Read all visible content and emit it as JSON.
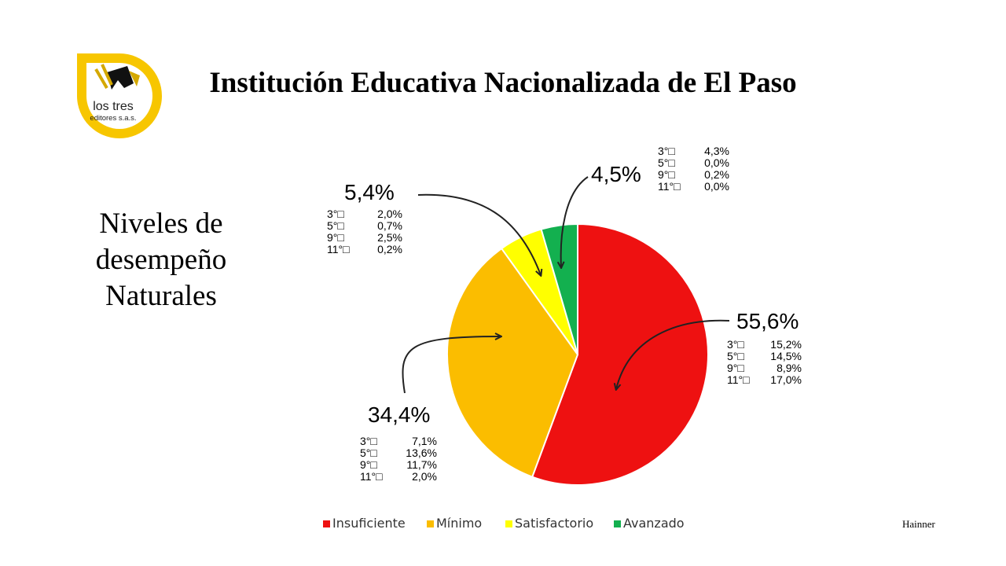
{
  "slide": {
    "title": "Institución Educativa Nacionalizada de El Paso",
    "subtitle": "Niveles de desempeño Naturales",
    "author": "Hainner",
    "logo": {
      "line1": "los tres",
      "line2": "editores s.a.s."
    }
  },
  "chart_data": {
    "type": "pie",
    "series": [
      {
        "name": "Insuficiente",
        "value": 55.6,
        "label": "55,6%",
        "color": "#ee1111",
        "details": [
          {
            "grade": "3°",
            "value": "15,2%"
          },
          {
            "grade": "5°",
            "value": "14,5%"
          },
          {
            "grade": "9°",
            "value": "8,9%"
          },
          {
            "grade": "11°",
            "value": "17,0%"
          }
        ]
      },
      {
        "name": "Mínimo",
        "value": 34.4,
        "label": "34,4%",
        "color": "#fbbd00",
        "details": [
          {
            "grade": "3°",
            "value": "7,1%"
          },
          {
            "grade": "5°",
            "value": "13,6%"
          },
          {
            "grade": "9°",
            "value": "11,7%"
          },
          {
            "grade": "11°",
            "value": "2,0%"
          }
        ]
      },
      {
        "name": "Satisfactorio",
        "value": 5.4,
        "label": "5,4%",
        "color": "#ffff00",
        "details": [
          {
            "grade": "3°",
            "value": "2,0%"
          },
          {
            "grade": "5°",
            "value": "0,7%"
          },
          {
            "grade": "9°",
            "value": "2,5%"
          },
          {
            "grade": "11°",
            "value": "0,2%"
          }
        ]
      },
      {
        "name": "Avanzado",
        "value": 4.5,
        "label": "4,5%",
        "color": "#13b04f",
        "details": [
          {
            "grade": "3°",
            "value": "4,3%"
          },
          {
            "grade": "5°",
            "value": "0,0%"
          },
          {
            "grade": "9°",
            "value": "0,2%"
          },
          {
            "grade": "11°",
            "value": "0,0%"
          }
        ]
      }
    ],
    "legend_position": "bottom"
  }
}
